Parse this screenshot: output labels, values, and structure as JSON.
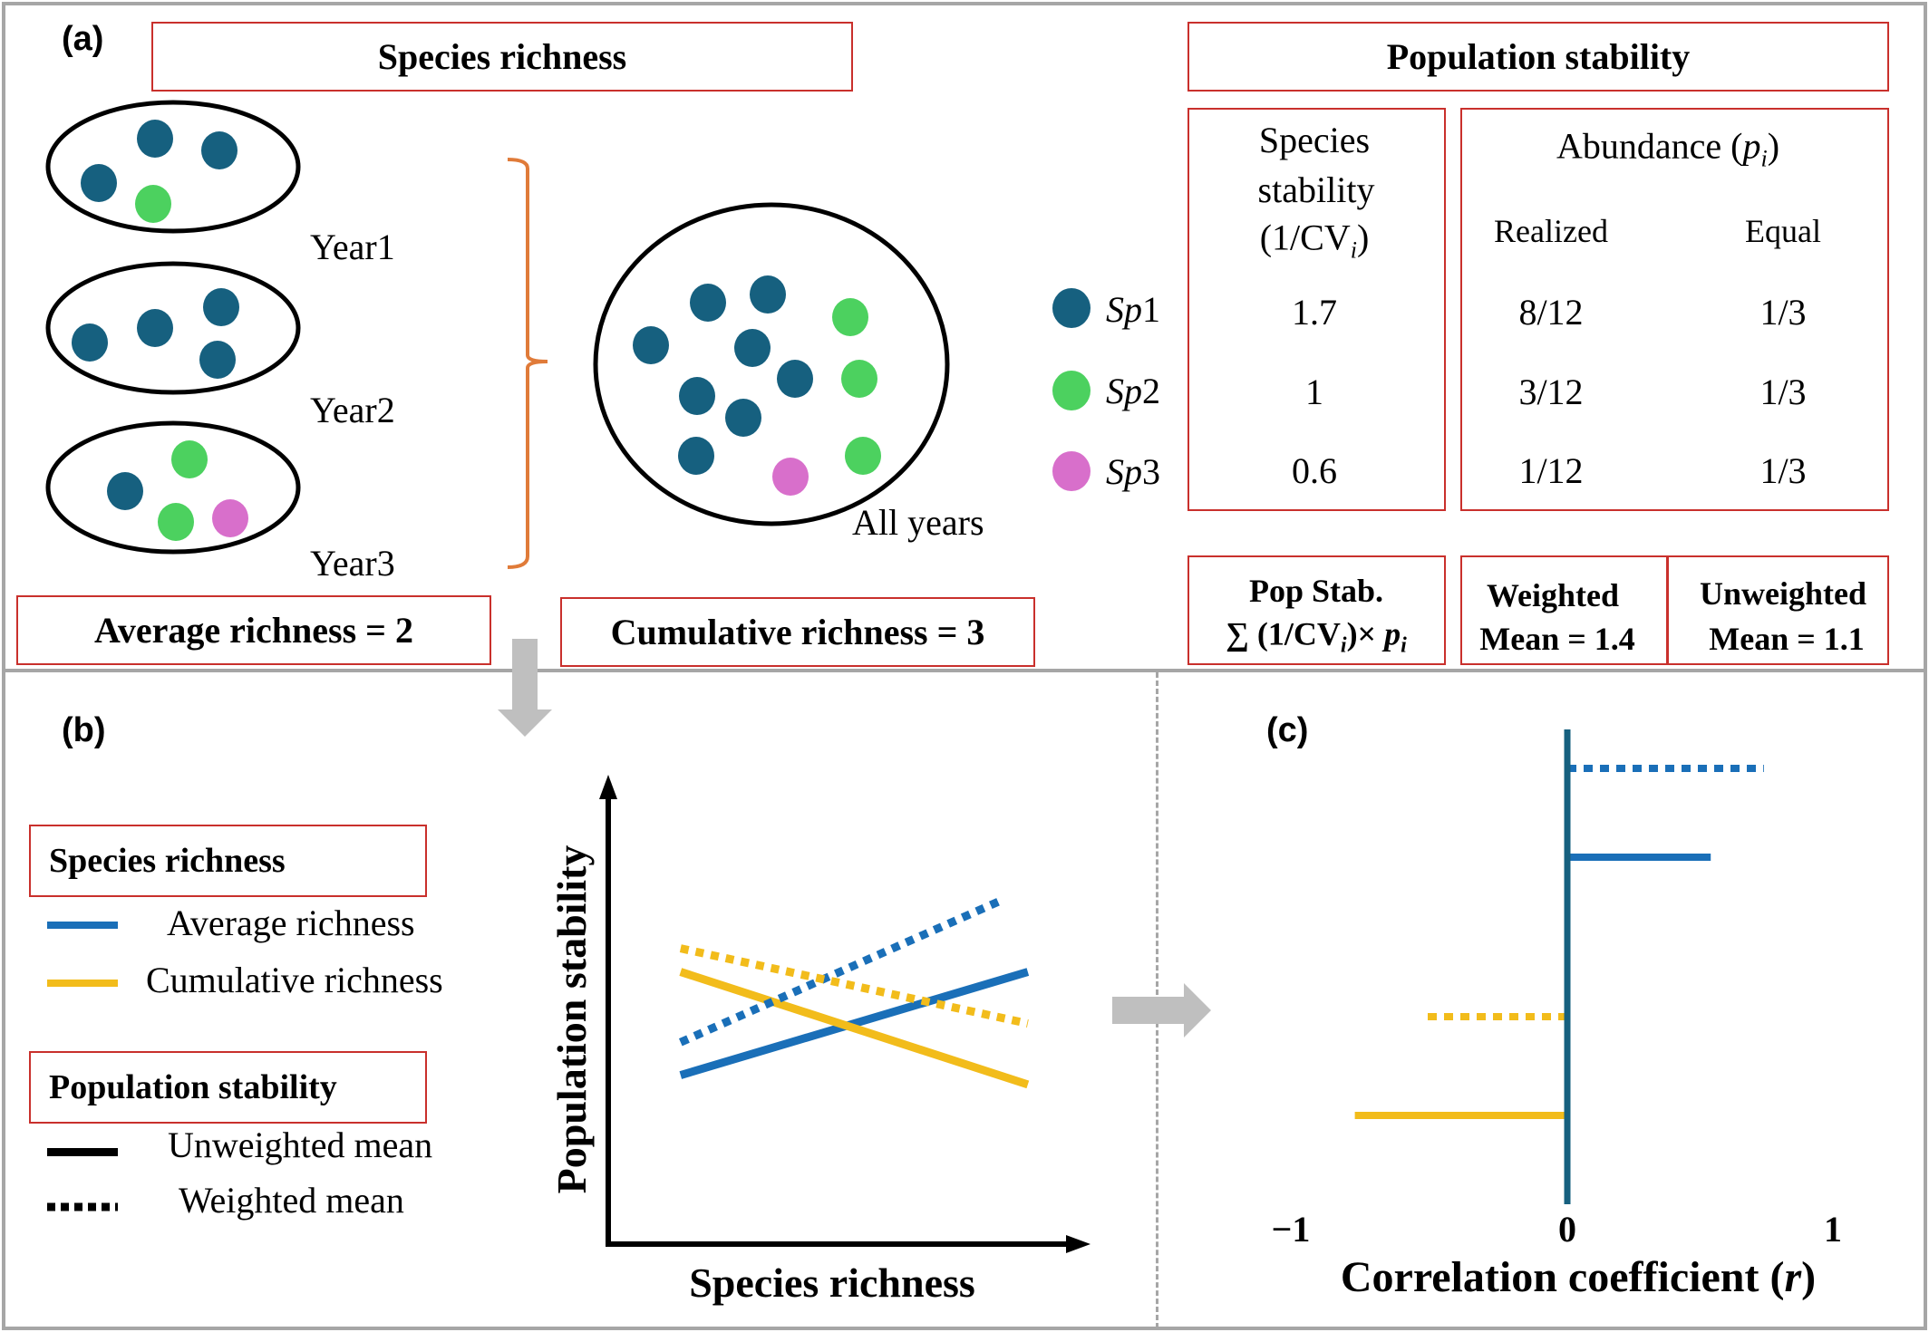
{
  "colors": {
    "sp1": "#16607f",
    "sp2": "#4cd15f",
    "sp3": "#d86fcb",
    "average": "#1a6fb8",
    "cumulative": "#f2bc1b",
    "box_border": "#c9302c",
    "bracket": "#e07b39",
    "axis_c": "#16607f",
    "arrow": "#bfbfbf",
    "divider": "#a6a6a6"
  },
  "panel_a": {
    "label": "(a)",
    "richness_title": "Species richness",
    "years": [
      {
        "label": "Year1",
        "species": [
          "sp1",
          "sp1",
          "sp1",
          "sp2"
        ]
      },
      {
        "label": "Year2",
        "species": [
          "sp1",
          "sp1",
          "sp1",
          "sp1"
        ]
      },
      {
        "label": "Year3",
        "species": [
          "sp1",
          "sp2",
          "sp2",
          "sp3"
        ]
      }
    ],
    "all_years": {
      "label": "All years",
      "counts": {
        "sp1": 8,
        "sp2": 3,
        "sp3": 1
      }
    },
    "legend": [
      {
        "id": "sp1",
        "prefix": "Sp",
        "num": "1"
      },
      {
        "id": "sp2",
        "prefix": "Sp",
        "num": "2"
      },
      {
        "id": "sp3",
        "prefix": "Sp",
        "num": "3"
      }
    ],
    "average_richness": "Average richness = 2",
    "cumulative_richness": "Cumulative richness = 3",
    "stability_title": "Population stability",
    "species_stability_header": [
      "Species",
      "stability",
      "(1/CV",
      "i",
      ")"
    ],
    "abundance_header": {
      "text": "Abundance (",
      "var": "p",
      "sub": "i",
      "close": ")"
    },
    "abundance_cols": [
      "Realized",
      "Equal"
    ],
    "rows": [
      {
        "stability": "1.7",
        "realized": "8/12",
        "equal": "1/3"
      },
      {
        "stability": "1",
        "realized": "3/12",
        "equal": "1/3"
      },
      {
        "stability": "0.6",
        "realized": "1/12",
        "equal": "1/3"
      }
    ],
    "pop_stab": {
      "line1": "Pop Stab.",
      "formula_pre": "∑ (1/CV",
      "formula_sub": "i",
      "formula_mid": ")× ",
      "formula_var": "p",
      "formula_var_sub": "i"
    },
    "weighted": {
      "line1": "Weighted",
      "line2": "Mean = 1.4"
    },
    "unweighted": {
      "line1": "Unweighted",
      "line2": "Mean = 1.1"
    }
  },
  "panel_b": {
    "label": "(b)",
    "legend_richness_title": "Species richness",
    "legend_average": "Average richness",
    "legend_cumulative": "Cumulative richness",
    "legend_stability_title": "Population stability",
    "legend_unweighted": "Unweighted mean",
    "legend_weighted": "Weighted mean"
  },
  "panel_c": {
    "label": "(c)"
  },
  "chart_data": [
    {
      "type": "line",
      "title": "",
      "xlabel": "Species richness",
      "ylabel": "Population stability",
      "xlim": [
        0,
        1
      ],
      "ylim": [
        0,
        1
      ],
      "grid": false,
      "series": [
        {
          "name": "Average richness – Unweighted mean",
          "color_key": "average",
          "style": "solid",
          "x": [
            0.15,
            0.87
          ],
          "y": [
            0.36,
            0.58
          ]
        },
        {
          "name": "Cumulative richness – Unweighted mean",
          "color_key": "cumulative",
          "style": "solid",
          "x": [
            0.15,
            0.87
          ],
          "y": [
            0.58,
            0.34
          ]
        },
        {
          "name": "Average richness – Weighted mean",
          "color_key": "average",
          "style": "dotted",
          "x": [
            0.15,
            0.81
          ],
          "y": [
            0.43,
            0.73
          ]
        },
        {
          "name": "Cumulative richness – Weighted mean",
          "color_key": "cumulative",
          "style": "dotted",
          "x": [
            0.15,
            0.87
          ],
          "y": [
            0.63,
            0.47
          ]
        }
      ]
    },
    {
      "type": "bar",
      "orientation": "horizontal",
      "xlabel_parts": {
        "text": "Correlation coefficient (",
        "var": "r",
        "close": ")"
      },
      "xlim": [
        -1,
        1
      ],
      "xticks": [
        "−1",
        "0",
        "1"
      ],
      "series": [
        {
          "name": "Average richness – Weighted mean",
          "color_key": "average",
          "style": "dotted",
          "value": 0.74
        },
        {
          "name": "Average richness – Unweighted mean",
          "color_key": "average",
          "style": "solid",
          "value": 0.54
        },
        {
          "name": "Cumulative richness – Weighted mean",
          "color_key": "cumulative",
          "style": "dotted",
          "value": -0.53
        },
        {
          "name": "Cumulative richness – Unweighted mean",
          "color_key": "cumulative",
          "style": "solid",
          "value": -0.8
        }
      ]
    }
  ]
}
